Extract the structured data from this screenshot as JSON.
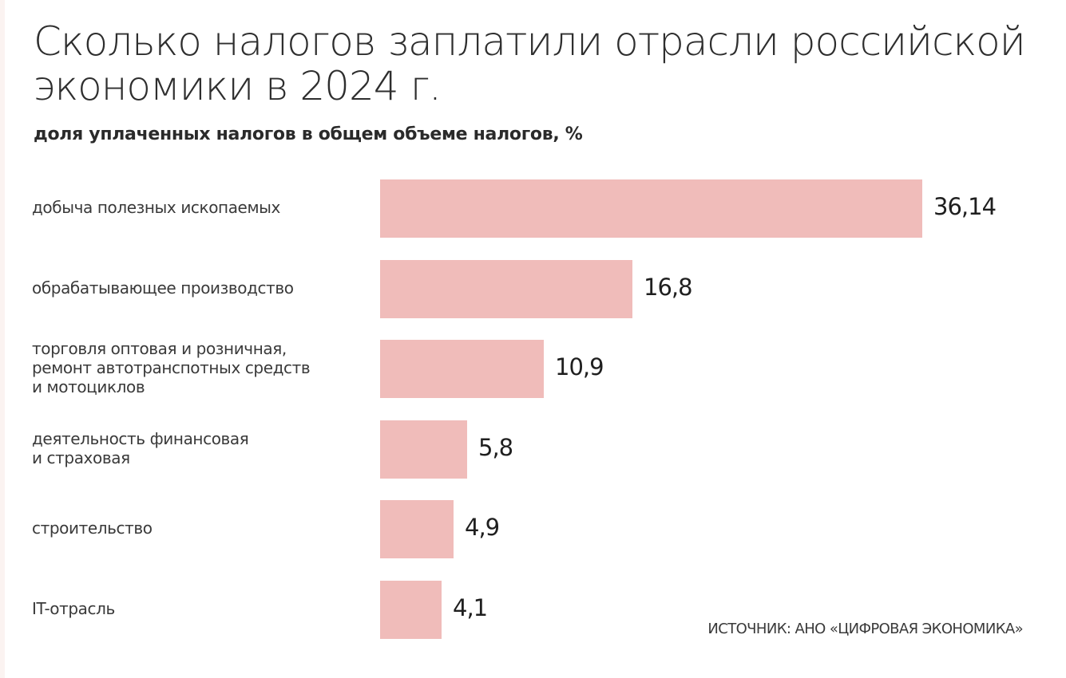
{
  "chart_data": {
    "type": "bar",
    "orientation": "horizontal",
    "title": "Сколько налогов заплатили отрасли российской экономики в 2024 г.",
    "subtitle": "доля уплаченных налогов в общем объеме налогов, %",
    "categories": [
      [
        "добыча полезных ископаемых"
      ],
      [
        "обрабатывающее производство"
      ],
      [
        "торговля оптовая и розничная,",
        "ремонт автотранспотных средств",
        "и мотоциклов"
      ],
      [
        "деятельность финансовая",
        "и страховая"
      ],
      [
        "строительство"
      ],
      [
        "IT-отрасль"
      ]
    ],
    "values": [
      36.14,
      16.8,
      10.9,
      5.8,
      4.9,
      4.1
    ],
    "value_labels": [
      "36,14",
      "16,8",
      "10,9",
      "5,8",
      "4,9",
      "4,1"
    ],
    "xlim": [
      0,
      36.14
    ],
    "grid": false,
    "bar_color": "#f0bcba",
    "source": "ИСТОЧНИК: АНО «ЦИФРОВАЯ ЭКОНОМИКА»"
  },
  "title_lines": [
    "Сколько налогов заплатили отрасли российской",
    "экономики в 2024 г."
  ]
}
